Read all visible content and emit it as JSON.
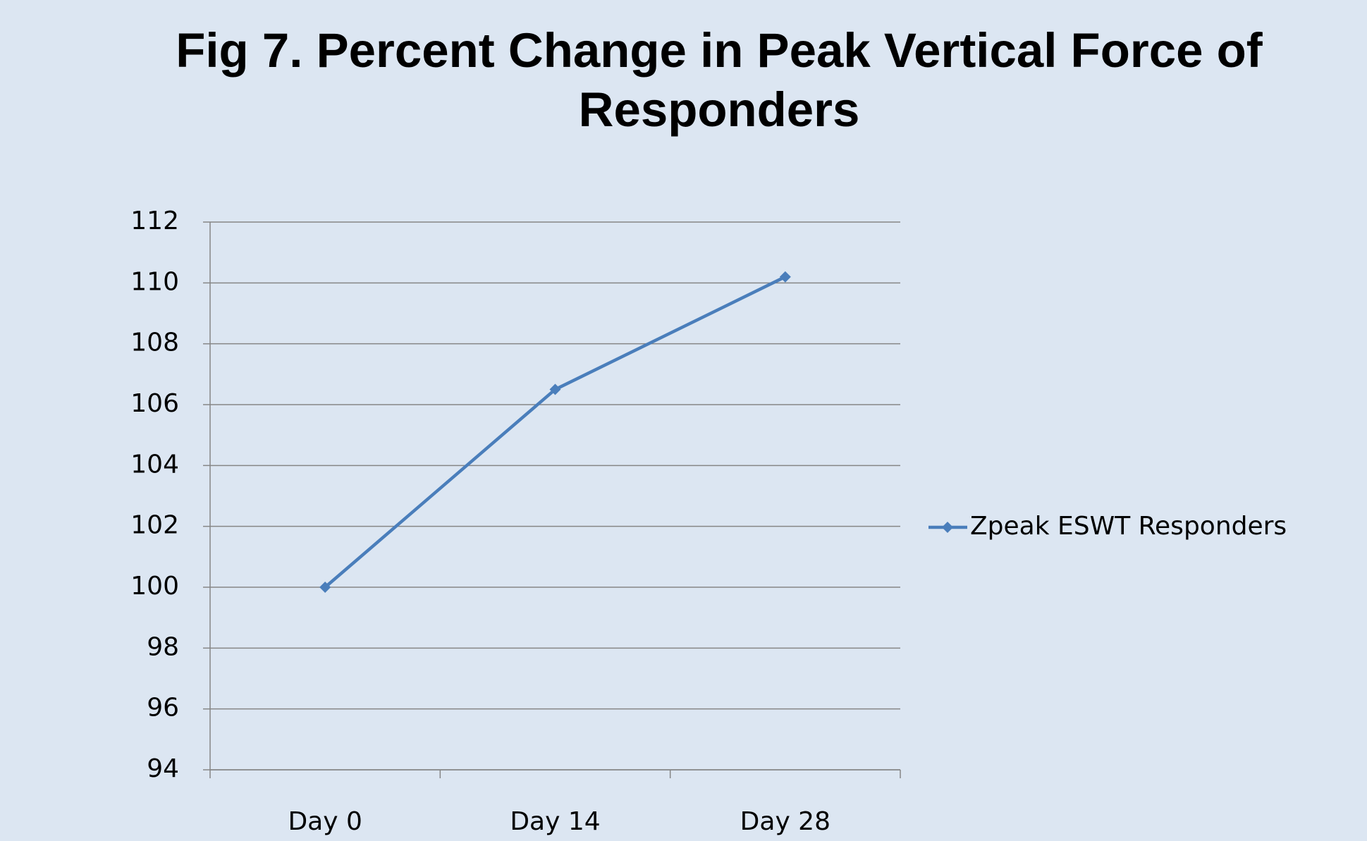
{
  "chart_data": {
    "type": "line",
    "title": "Fig 7. Percent Change in Peak Vertical Force of Responders",
    "categories": [
      "Day 0",
      "Day 14",
      "Day 28"
    ],
    "series": [
      {
        "name": "Zpeak ESWT Responders",
        "color": "#4a7ebb",
        "values": [
          100,
          106.5,
          110.2
        ]
      }
    ],
    "ylim": [
      94,
      112
    ],
    "yticks": [
      94,
      96,
      98,
      100,
      102,
      104,
      106,
      108,
      110,
      112
    ],
    "grid": true,
    "legend": "right"
  }
}
